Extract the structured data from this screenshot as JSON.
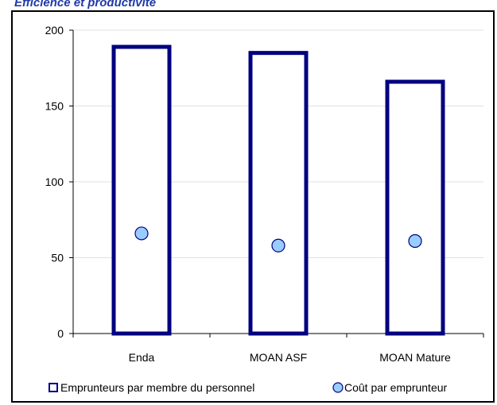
{
  "heading": "Efficience et productivité",
  "chart_data": {
    "type": "bar",
    "categories": [
      "Enda",
      "MOAN ASF",
      "MOAN Mature"
    ],
    "series": [
      {
        "name": "Emprunteurs par membre du personnel",
        "kind": "bar",
        "values": [
          189,
          185,
          166
        ]
      },
      {
        "name": "Coût par emprunteur",
        "kind": "scatter",
        "values": [
          66,
          58,
          61
        ]
      }
    ],
    "ylim": [
      0,
      200
    ],
    "yticks": [
      0,
      50,
      100,
      150,
      200
    ],
    "grid": true,
    "legend": "bottom",
    "colors": {
      "bar_edge": "#000080",
      "bar_fill": "#ffffff",
      "marker_fill": "#99ccff",
      "marker_edge": "#000080",
      "grid": "#e0e0e0"
    }
  }
}
